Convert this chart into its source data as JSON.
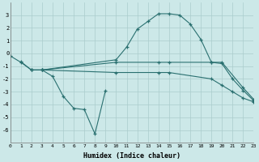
{
  "x_min": 0,
  "x_max": 23,
  "y_min": -7,
  "y_max": 4,
  "xlabel": "Humidex (Indice chaleur)",
  "bg_color": "#cce8e8",
  "grid_color": "#aacccc",
  "line_color": "#2a7070",
  "lines": [
    {
      "x": [
        0,
        1,
        2,
        3,
        10,
        11,
        12,
        13,
        14,
        15,
        16,
        17,
        18,
        19,
        20,
        21,
        22,
        23
      ],
      "y": [
        -0.2,
        -0.7,
        -1.3,
        -1.3,
        -0.5,
        0.5,
        1.9,
        2.5,
        3.1,
        3.1,
        3.0,
        2.3,
        1.1,
        -0.7,
        -0.8,
        -2.0,
        -2.9,
        -3.7
      ]
    },
    {
      "x": [
        1,
        2,
        3,
        10,
        14,
        15,
        19,
        20,
        22,
        23
      ],
      "y": [
        -0.65,
        -1.3,
        -1.3,
        -0.7,
        -0.7,
        -0.7,
        -0.7,
        -0.7,
        -2.7,
        -3.6
      ]
    },
    {
      "x": [
        2,
        3,
        10,
        14,
        15,
        19,
        20,
        21,
        22,
        23
      ],
      "y": [
        -1.3,
        -1.3,
        -1.5,
        -1.5,
        -1.5,
        -2.0,
        -2.5,
        -3.0,
        -3.5,
        -3.8
      ]
    },
    {
      "x": [
        3,
        4,
        5,
        6,
        7,
        8,
        9
      ],
      "y": [
        -1.3,
        -1.8,
        -3.35,
        -4.3,
        -4.4,
        -6.3,
        -2.9
      ]
    }
  ]
}
